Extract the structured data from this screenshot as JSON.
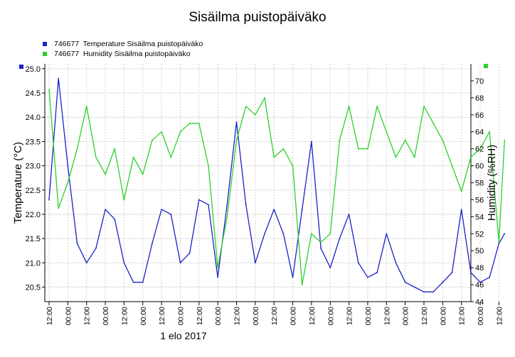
{
  "chart_data": {
    "type": "line",
    "title": "Sisäilma puistopäiväko",
    "left_axis": {
      "label": "Temperature (°C)",
      "ylim": [
        20.2,
        25.1
      ],
      "ticks": [
        "20.5",
        "21.0",
        "21.5",
        "22.0",
        "22.5",
        "23.0",
        "23.5",
        "24.0",
        "24.5",
        "25.0"
      ]
    },
    "right_axis": {
      "label": "Humidity (%RH)",
      "ylim": [
        44,
        72
      ],
      "ticks": [
        "44",
        "46",
        "48",
        "50",
        "52",
        "54",
        "56",
        "58",
        "60",
        "62",
        "64",
        "66",
        "68",
        "70"
      ]
    },
    "x_tick_labels": [
      "12:00",
      "00:00",
      "12:00",
      "00:00",
      "12:00",
      "00:00",
      "12:00",
      "00:00",
      "12:00",
      "00:00",
      "12:00",
      "00:00",
      "12:00",
      "00:00",
      "12:00",
      "00:00",
      "12:00",
      "00:00",
      "12:00",
      "00:00",
      "12:00",
      "00:00",
      "12:00",
      "00:00",
      "12:00"
    ],
    "x_axis_note": "1 elo 2017",
    "legend_placement": "top-left",
    "grid": true,
    "series": [
      {
        "name": "746677  Temperature Sisäilma puistopäiväko",
        "axis": "left",
        "color": "#1a22c8",
        "x": [
          0,
          0.5,
          1,
          1.5,
          2,
          2.5,
          3,
          3.5,
          4,
          4.5,
          5,
          5.5,
          6,
          6.5,
          7,
          7.5,
          8,
          8.5,
          9,
          9.5,
          10,
          10.5,
          11,
          11.5,
          12,
          12.5,
          13,
          13.5,
          14,
          14.5,
          15,
          15.5,
          16,
          16.5,
          17,
          17.5,
          18,
          18.5,
          19,
          19.5,
          20,
          20.5,
          21,
          21.5,
          22,
          22.5,
          23,
          23.5,
          24,
          24.3
        ],
        "values": [
          22.3,
          24.8,
          23.0,
          21.4,
          21.0,
          21.3,
          22.1,
          21.9,
          21.0,
          20.6,
          20.6,
          21.4,
          22.1,
          22.0,
          21.0,
          21.2,
          22.3,
          22.2,
          20.7,
          22.2,
          23.9,
          22.2,
          21.0,
          21.6,
          22.1,
          21.6,
          20.7,
          22.1,
          23.5,
          21.3,
          20.9,
          21.5,
          22.0,
          21.0,
          20.7,
          20.8,
          21.6,
          21.0,
          20.6,
          20.5,
          20.4,
          20.4,
          20.6,
          20.8,
          22.1,
          20.8,
          20.6,
          20.7,
          21.4,
          21.6
        ]
      },
      {
        "name": "746677  Humidity Sisäilma puistopäiväko",
        "axis": "right",
        "color": "#2bd12b",
        "x": [
          0,
          0.5,
          1,
          1.5,
          2,
          2.5,
          3,
          3.5,
          4,
          4.5,
          5,
          5.5,
          6,
          6.5,
          7,
          7.5,
          8,
          8.5,
          9,
          9.5,
          10,
          10.5,
          11,
          11.5,
          12,
          12.5,
          13,
          13.5,
          14,
          14.5,
          15,
          15.5,
          16,
          16.5,
          17,
          17.5,
          18,
          18.5,
          19,
          19.5,
          20,
          20.5,
          21,
          21.5,
          22,
          22.5,
          23,
          23.5,
          24,
          24.3
        ],
        "values": [
          69,
          55,
          58,
          62,
          67,
          61,
          59,
          62,
          56,
          61,
          59,
          63,
          64,
          61,
          64,
          65,
          65,
          60,
          48,
          54,
          63,
          67,
          66,
          68,
          61,
          62,
          60,
          46,
          52,
          51,
          52,
          63,
          67,
          62,
          62,
          67,
          64,
          61,
          63,
          61,
          67,
          65,
          63,
          60,
          57,
          61,
          62,
          64,
          51,
          63
        ]
      }
    ]
  }
}
